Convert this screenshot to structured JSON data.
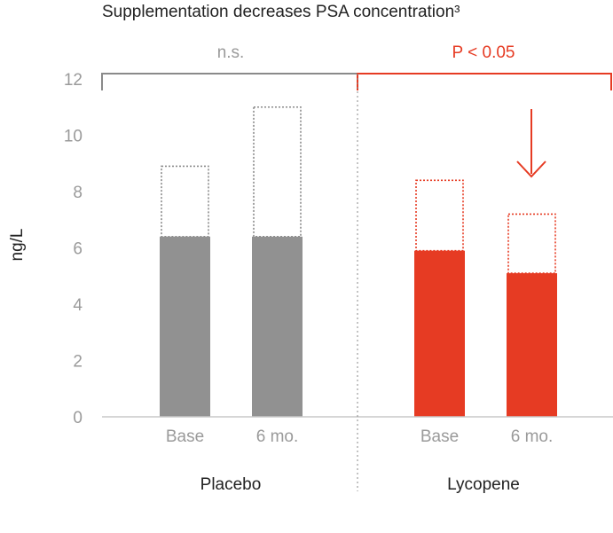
{
  "chart_data": {
    "type": "bar",
    "title": "Supplementation decreases PSA concentration³",
    "ylabel": "ng/L",
    "xlabel": "",
    "ylim": [
      0,
      12
    ],
    "yticks": [
      0,
      2,
      4,
      6,
      8,
      10,
      12
    ],
    "grid": false,
    "groups": [
      {
        "name": "Placebo",
        "significance": "n.s.",
        "color": "#919191",
        "outline_color": "#8a8a8a",
        "bars": [
          {
            "label": "Base",
            "value": 6.4,
            "upper": 8.9
          },
          {
            "label": "6 mo.",
            "value": 6.4,
            "upper": 11.0
          }
        ]
      },
      {
        "name": "Lycopene",
        "significance": "P < 0.05",
        "color": "#e63b23",
        "outline_color": "#e63b23",
        "bars": [
          {
            "label": "Base",
            "value": 5.9,
            "upper": 8.4
          },
          {
            "label": "6 mo.",
            "value": 5.1,
            "upper": 7.2
          }
        ]
      }
    ],
    "annotations": [
      "decrease-arrow"
    ]
  },
  "colors": {
    "axis": "#c8c8c8",
    "tick_text": "#9a9a9a",
    "text": "#222222",
    "divider": "#888888"
  }
}
